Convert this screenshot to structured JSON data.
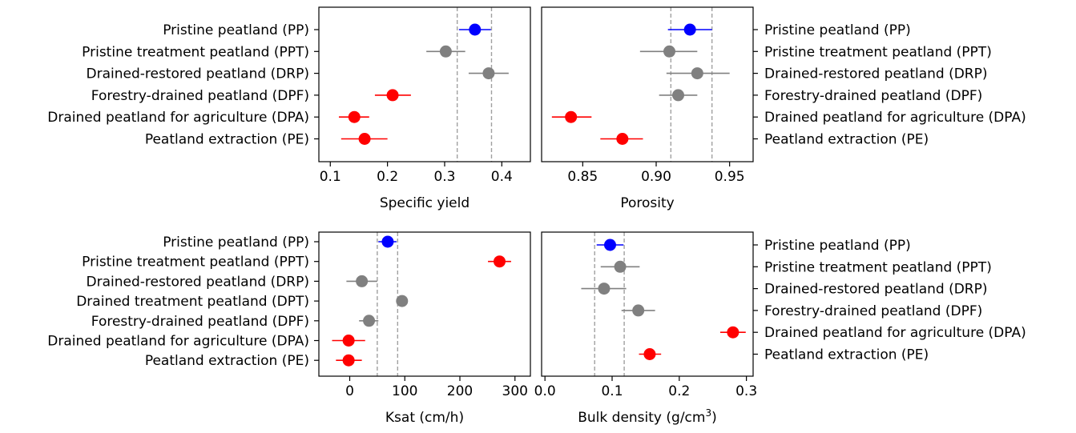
{
  "colors": {
    "highlight": "#0000ff",
    "neutral": "#808080",
    "low": "#ff0000",
    "reference_line": "#a0a0a0"
  },
  "chart_data": [
    {
      "type": "scatter",
      "xlabel": "Specific yield",
      "xlim": [
        0.08,
        0.45
      ],
      "xticks": [
        0.1,
        0.2,
        0.3,
        0.4
      ],
      "xtick_labels": [
        "0.1",
        "0.2",
        "0.3",
        "0.4"
      ],
      "category_labels_side": "left",
      "reference_lines": [
        0.322,
        0.382
      ],
      "grid": false,
      "points": [
        {
          "label": "Pristine peatland (PP)",
          "value": 0.353,
          "low": 0.325,
          "high": 0.381,
          "color": "#0000ff"
        },
        {
          "label": "Pristine treatment peatland (PPT)",
          "value": 0.302,
          "low": 0.268,
          "high": 0.336,
          "color": "#808080"
        },
        {
          "label": "Drained-restored peatland (DRP)",
          "value": 0.377,
          "low": 0.342,
          "high": 0.412,
          "color": "#808080"
        },
        {
          "label": "Forestry-drained peatland (DPF)",
          "value": 0.209,
          "low": 0.178,
          "high": 0.241,
          "color": "#ff0000"
        },
        {
          "label": "Drained peatland for agriculture (DPA)",
          "value": 0.142,
          "low": 0.115,
          "high": 0.168,
          "color": "#ff0000"
        },
        {
          "label": "Peatland extraction (PE)",
          "value": 0.16,
          "low": 0.119,
          "high": 0.2,
          "color": "#ff0000"
        }
      ]
    },
    {
      "type": "scatter",
      "xlabel": "Porosity",
      "xlim": [
        0.822,
        0.966
      ],
      "xticks": [
        0.85,
        0.9,
        0.95
      ],
      "xtick_labels": [
        "0.85",
        "0.90",
        "0.95"
      ],
      "category_labels_side": "right",
      "reference_lines": [
        0.91,
        0.938
      ],
      "grid": false,
      "points": [
        {
          "label": "Pristine peatland (PP)",
          "value": 0.923,
          "low": 0.908,
          "high": 0.938,
          "color": "#0000ff"
        },
        {
          "label": "Pristine treatment peatland (PPT)",
          "value": 0.909,
          "low": 0.889,
          "high": 0.928,
          "color": "#808080"
        },
        {
          "label": "Drained-restored peatland (DRP)",
          "value": 0.928,
          "low": 0.907,
          "high": 0.95,
          "color": "#808080"
        },
        {
          "label": "Forestry-drained peatland (DPF)",
          "value": 0.915,
          "low": 0.902,
          "high": 0.928,
          "color": "#808080"
        },
        {
          "label": "Drained peatland for agriculture (DPA)",
          "value": 0.842,
          "low": 0.829,
          "high": 0.856,
          "color": "#ff0000"
        },
        {
          "label": "Peatland extraction (PE)",
          "value": 0.877,
          "low": 0.862,
          "high": 0.891,
          "color": "#ff0000"
        }
      ]
    },
    {
      "type": "scatter",
      "xlabel": "Ksat (cm/h)",
      "xlim": [
        -56,
        328
      ],
      "xticks": [
        0,
        100,
        200,
        300
      ],
      "xtick_labels": [
        "0",
        "100",
        "200",
        "300"
      ],
      "category_labels_side": "left",
      "reference_lines": [
        50,
        87
      ],
      "grid": false,
      "points": [
        {
          "label": "Pristine peatland (PP)",
          "value": 69,
          "low": 52,
          "high": 85,
          "color": "#0000ff"
        },
        {
          "label": "Pristine treatment peatland (PPT)",
          "value": 272,
          "low": 251,
          "high": 293,
          "color": "#ff0000"
        },
        {
          "label": "Drained-restored peatland (DRP)",
          "value": 22,
          "low": -6,
          "high": 50,
          "color": "#808080"
        },
        {
          "label": "Drained treatment peatland (DPT)",
          "value": 95,
          "low": 90,
          "high": 100,
          "color": "#808080"
        },
        {
          "label": "Forestry-drained peatland (DPF)",
          "value": 35,
          "low": 17,
          "high": 52,
          "color": "#808080"
        },
        {
          "label": "Drained peatland for agriculture (DPA)",
          "value": -2,
          "low": -32,
          "high": 28,
          "color": "#ff0000"
        },
        {
          "label": "Peatland extraction (PE)",
          "value": -2,
          "low": -25,
          "high": 22,
          "color": "#ff0000"
        }
      ]
    },
    {
      "type": "scatter",
      "xlabel": "Bulk density (g/cm",
      "xlabel_superscript": "3",
      "xlabel_suffix": ")",
      "xlim": [
        -0.005,
        0.31
      ],
      "xticks": [
        0.0,
        0.1,
        0.2,
        0.3
      ],
      "xtick_labels": [
        "0.0",
        "0.1",
        "0.2",
        "0.3"
      ],
      "category_labels_side": "right",
      "reference_lines": [
        0.074,
        0.118
      ],
      "grid": false,
      "points": [
        {
          "label": "Pristine peatland (PP)",
          "value": 0.097,
          "low": 0.077,
          "high": 0.117,
          "color": "#0000ff"
        },
        {
          "label": "Pristine treatment peatland (PPT)",
          "value": 0.112,
          "low": 0.083,
          "high": 0.141,
          "color": "#808080"
        },
        {
          "label": "Drained-restored peatland (DRP)",
          "value": 0.088,
          "low": 0.054,
          "high": 0.121,
          "color": "#808080"
        },
        {
          "label": "Forestry-drained peatland (DPF)",
          "value": 0.139,
          "low": 0.114,
          "high": 0.164,
          "color": "#808080"
        },
        {
          "label": "Drained peatland for agriculture (DPA)",
          "value": 0.28,
          "low": 0.261,
          "high": 0.299,
          "color": "#ff0000"
        },
        {
          "label": "Peatland extraction (PE)",
          "value": 0.156,
          "low": 0.14,
          "high": 0.173,
          "color": "#ff0000"
        }
      ]
    }
  ]
}
